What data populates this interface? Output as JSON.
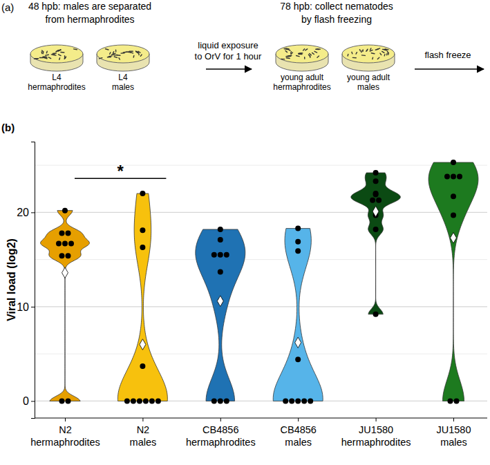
{
  "panel_a": {
    "label": "(a)",
    "step1": [
      "48 hpb: males are separated",
      "from hermaphrodites"
    ],
    "dishes1": [
      [
        "L4",
        "hermaphrodites"
      ],
      [
        "L4",
        "males"
      ]
    ],
    "transition1": [
      "liquid exposure",
      "to OrV for 1 hour"
    ],
    "step2": [
      "78 hpb: collect nematodes",
      "by flash freezing"
    ],
    "dishes2": [
      [
        "young adult",
        "hermaphrodites"
      ],
      [
        "young adult",
        "males"
      ]
    ],
    "transition2": [
      "flash freeze"
    ]
  },
  "chart_data": {
    "type": "violin",
    "title": "(b)",
    "y_label": "Viral load (log2)",
    "categories": [
      "N2 hermaphrodites",
      "N2 males",
      "CB4856 hermaphrodites",
      "CB4856 males",
      "JU1580 hermaphrodites",
      "JU1580 males"
    ],
    "values": [
      [
        20.2,
        17.8,
        17.8,
        16.7,
        16.7,
        16.7,
        15.4,
        15.4,
        0,
        0
      ],
      [
        22.0,
        18.1,
        16.3,
        3.7,
        0,
        0,
        0,
        0,
        0,
        0
      ],
      [
        18.2,
        17.1,
        15.5,
        15.5,
        15.5,
        13.7,
        10.6,
        0,
        0,
        0
      ],
      [
        18.3,
        16.9,
        15.9,
        4.4,
        0,
        0,
        0,
        0,
        0
      ],
      [
        24.2,
        23.3,
        22.0,
        21.9,
        21.3,
        21.3,
        19.7,
        18.2,
        9.2
      ],
      [
        25.3,
        23.8,
        23.8,
        23.8,
        21.7,
        19.7,
        0,
        0
      ]
    ],
    "means": [
      13.6,
      6.0,
      10.6,
      6.2,
      20.1,
      17.3
    ],
    "colors": [
      "#e69f00",
      "#f7c10d",
      "#1f72b3",
      "#56b4e9",
      "#0b4a13",
      "#1d7a1f"
    ],
    "ylim": [
      -1.8,
      27.5
    ],
    "yticks": [
      0,
      10,
      20
    ],
    "minor_yticks": [
      5,
      15,
      25
    ],
    "grid": true,
    "annotations": [
      {
        "text": "*",
        "between": [
          0,
          1
        ],
        "y": 23.6
      }
    ]
  }
}
